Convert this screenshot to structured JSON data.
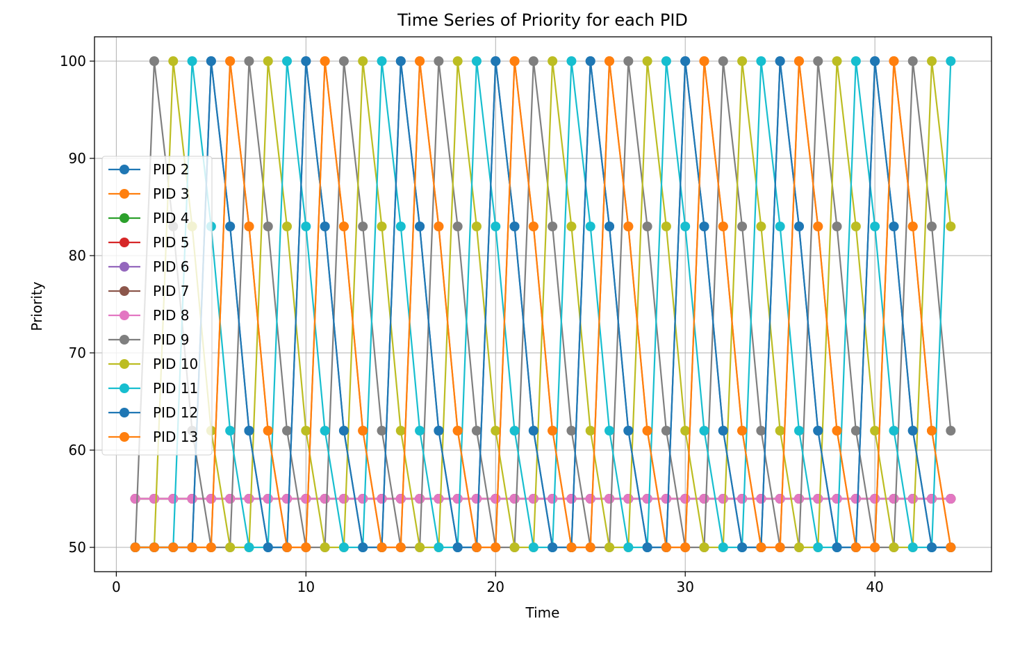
{
  "chart_data": {
    "type": "line",
    "title": "Time Series of Priority for each PID",
    "xlabel": "Time",
    "ylabel": "Priority",
    "xlim": [
      -1.15,
      46.15
    ],
    "ylim": [
      47.5,
      102.5
    ],
    "xticks": [
      0,
      10,
      20,
      30,
      40
    ],
    "yticks": [
      50,
      60,
      70,
      80,
      90,
      100
    ],
    "grid": true,
    "legend_position": "center-left",
    "markers": true,
    "x": [
      1,
      2,
      3,
      4,
      5,
      6,
      7,
      8,
      9,
      10,
      11,
      12,
      13,
      14,
      15,
      16,
      17,
      18,
      19,
      20,
      21,
      22,
      23,
      24,
      25,
      26,
      27,
      28,
      29,
      30,
      31,
      32,
      33,
      34,
      35,
      36,
      37,
      38,
      39,
      40,
      41,
      42,
      43,
      44
    ],
    "priority_cycle": [
      50,
      100,
      83,
      62
    ],
    "series": [
      {
        "name": "PID 2",
        "color": "#1f77b4",
        "values": [
          50,
          50,
          50,
          50,
          100,
          83,
          62,
          50,
          50,
          100,
          83,
          62,
          50,
          50,
          100,
          83,
          62,
          50,
          50,
          100,
          83,
          62,
          50,
          50,
          100,
          83,
          62,
          50,
          50,
          100,
          83,
          62,
          50,
          50,
          100,
          83,
          62,
          50,
          50,
          100,
          83,
          62,
          50,
          50
        ]
      },
      {
        "name": "PID 3",
        "color": "#ff7f0e",
        "values": [
          50,
          50,
          50,
          50,
          50,
          100,
          83,
          62,
          50,
          50,
          100,
          83,
          62,
          50,
          50,
          100,
          83,
          62,
          50,
          50,
          100,
          83,
          62,
          50,
          50,
          100,
          83,
          62,
          50,
          50,
          100,
          83,
          62,
          50,
          50,
          100,
          83,
          62,
          50,
          50,
          100,
          83,
          62,
          50
        ]
      },
      {
        "name": "PID 4",
        "color": "#2ca02c",
        "values": [
          55,
          55,
          55,
          55,
          55,
          55,
          55,
          55,
          55,
          55,
          55,
          55,
          55,
          55,
          55,
          55,
          55,
          55,
          55,
          55,
          55,
          55,
          55,
          55,
          55,
          55,
          55,
          55,
          55,
          55,
          55,
          55,
          55,
          55,
          55,
          55,
          55,
          55,
          55,
          55,
          55,
          55,
          55,
          55
        ]
      },
      {
        "name": "PID 5",
        "color": "#d62728",
        "values": [
          55,
          55,
          55,
          55,
          55,
          55,
          55,
          55,
          55,
          55,
          55,
          55,
          55,
          55,
          55,
          55,
          55,
          55,
          55,
          55,
          55,
          55,
          55,
          55,
          55,
          55,
          55,
          55,
          55,
          55,
          55,
          55,
          55,
          55,
          55,
          55,
          55,
          55,
          55,
          55,
          55,
          55,
          55,
          55
        ]
      },
      {
        "name": "PID 6",
        "color": "#9467bd",
        "values": [
          55,
          55,
          55,
          55,
          55,
          55,
          55,
          55,
          55,
          55,
          55,
          55,
          55,
          55,
          55,
          55,
          55,
          55,
          55,
          55,
          55,
          55,
          55,
          55,
          55,
          55,
          55,
          55,
          55,
          55,
          55,
          55,
          55,
          55,
          55,
          55,
          55,
          55,
          55,
          55,
          55,
          55,
          55,
          55
        ]
      },
      {
        "name": "PID 7",
        "color": "#8c564b",
        "values": [
          55,
          55,
          55,
          55,
          55,
          55,
          55,
          55,
          55,
          55,
          55,
          55,
          55,
          55,
          55,
          55,
          55,
          55,
          55,
          55,
          55,
          55,
          55,
          55,
          55,
          55,
          55,
          55,
          55,
          55,
          55,
          55,
          55,
          55,
          55,
          55,
          55,
          55,
          55,
          55,
          55,
          55,
          55,
          55
        ]
      },
      {
        "name": "PID 8",
        "color": "#e377c2",
        "values": [
          55,
          55,
          55,
          55,
          55,
          55,
          55,
          55,
          55,
          55,
          55,
          55,
          55,
          55,
          55,
          55,
          55,
          55,
          55,
          55,
          55,
          55,
          55,
          55,
          55,
          55,
          55,
          55,
          55,
          55,
          55,
          55,
          55,
          55,
          55,
          55,
          55,
          55,
          55,
          55,
          55,
          55,
          55,
          55
        ]
      },
      {
        "name": "PID 9",
        "color": "#7f7f7f",
        "values": [
          50,
          100,
          83,
          62,
          50,
          50,
          100,
          83,
          62,
          50,
          50,
          100,
          83,
          62,
          50,
          50,
          100,
          83,
          62,
          50,
          50,
          100,
          83,
          62,
          50,
          50,
          100,
          83,
          62,
          50,
          50,
          100,
          83,
          62,
          50,
          50,
          100,
          83,
          62,
          50,
          50,
          100,
          83,
          62
        ]
      },
      {
        "name": "PID 10",
        "color": "#bcbd22",
        "values": [
          50,
          50,
          100,
          83,
          62,
          50,
          50,
          100,
          83,
          62,
          50,
          50,
          100,
          83,
          62,
          50,
          50,
          100,
          83,
          62,
          50,
          50,
          100,
          83,
          62,
          50,
          50,
          100,
          83,
          62,
          50,
          50,
          100,
          83,
          62,
          50,
          50,
          100,
          83,
          62,
          50,
          50,
          100,
          83
        ]
      },
      {
        "name": "PID 11",
        "color": "#17becf",
        "values": [
          50,
          50,
          50,
          100,
          83,
          62,
          50,
          50,
          100,
          83,
          62,
          50,
          50,
          100,
          83,
          62,
          50,
          50,
          100,
          83,
          62,
          50,
          50,
          100,
          83,
          62,
          50,
          50,
          100,
          83,
          62,
          50,
          50,
          100,
          83,
          62,
          50,
          50,
          100,
          83,
          62,
          50,
          50,
          100
        ]
      },
      {
        "name": "PID 12",
        "color": "#1f77b4",
        "values": [
          50,
          50,
          50,
          50,
          100,
          83,
          62,
          50,
          50,
          100,
          83,
          62,
          50,
          50,
          100,
          83,
          62,
          50,
          50,
          100,
          83,
          62,
          50,
          50,
          100,
          83,
          62,
          50,
          50,
          100,
          83,
          62,
          50,
          50,
          100,
          83,
          62,
          50,
          50,
          100,
          83,
          62,
          50,
          50
        ]
      },
      {
        "name": "PID 13",
        "color": "#ff7f0e",
        "values": [
          50,
          50,
          50,
          50,
          50,
          100,
          83,
          62,
          50,
          50,
          100,
          83,
          62,
          50,
          50,
          100,
          83,
          62,
          50,
          50,
          100,
          83,
          62,
          50,
          50,
          100,
          83,
          62,
          50,
          50,
          100,
          83,
          62,
          50,
          50,
          100,
          83,
          62,
          50,
          50,
          100,
          83,
          62,
          50
        ]
      }
    ]
  }
}
